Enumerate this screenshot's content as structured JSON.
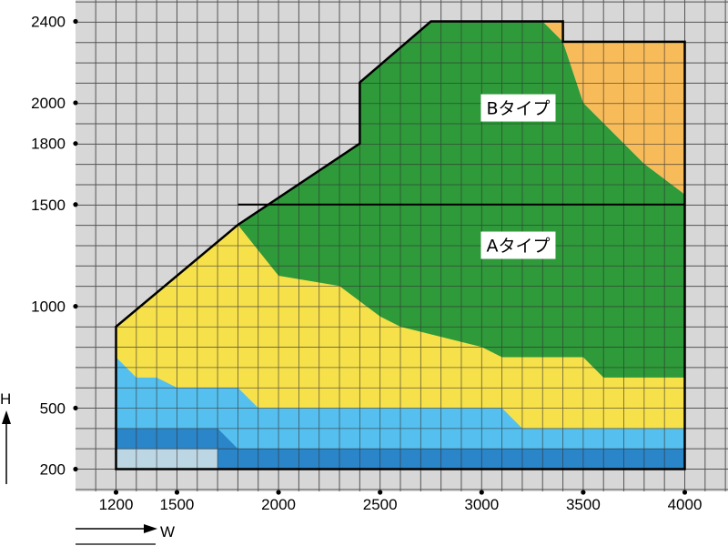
{
  "chart_data": {
    "type": "area",
    "title": "",
    "xlabel": "W",
    "ylabel": "H",
    "xlim": [
      1200,
      4000
    ],
    "ylim": [
      200,
      2400
    ],
    "x_ticks": [
      1200,
      1500,
      2000,
      2500,
      3000,
      3500,
      4000
    ],
    "y_ticks": [
      200,
      500,
      1000,
      1500,
      1800,
      2000,
      2400
    ],
    "grid": true,
    "colors": {
      "background": "#d7d7d7",
      "grid": "#555555",
      "outline": "#000000",
      "green": "#2e9a3a",
      "orange": "#f7bb5a",
      "yellow": "#f7e14a",
      "light_blue": "#55c0ef",
      "mid_blue": "#2b85c9",
      "pale_blue": "#bcd6e3"
    },
    "outline": [
      [
        1200,
        900
      ],
      [
        1800,
        1400
      ],
      [
        2400,
        1800
      ],
      [
        2400,
        2100
      ],
      [
        2750,
        2400
      ],
      [
        3400,
        2400
      ],
      [
        3400,
        2300
      ],
      [
        4000,
        2300
      ],
      [
        4000,
        200
      ],
      [
        1200,
        200
      ]
    ],
    "divider": {
      "y": 1500,
      "x": [
        1800,
        4000
      ]
    },
    "regions": [
      {
        "color": "green",
        "points": [
          [
            1200,
            900
          ],
          [
            1800,
            1400
          ],
          [
            2400,
            1800
          ],
          [
            2400,
            2100
          ],
          [
            2750,
            2400
          ],
          [
            3300,
            2400
          ],
          [
            3400,
            2300
          ],
          [
            3500,
            2000
          ],
          [
            3800,
            1700
          ],
          [
            4000,
            1550
          ],
          [
            4000,
            200
          ],
          [
            1200,
            200
          ]
        ]
      },
      {
        "color": "orange",
        "points": [
          [
            3300,
            2400
          ],
          [
            3400,
            2400
          ],
          [
            3400,
            2300
          ],
          [
            4000,
            2300
          ],
          [
            4000,
            1550
          ],
          [
            3800,
            1700
          ],
          [
            3500,
            2000
          ],
          [
            3400,
            2300
          ]
        ]
      },
      {
        "color": "yellow",
        "points": [
          [
            1200,
            900
          ],
          [
            1800,
            1400
          ],
          [
            2000,
            1150
          ],
          [
            2300,
            1100
          ],
          [
            2500,
            950
          ],
          [
            2600,
            900
          ],
          [
            3000,
            800
          ],
          [
            3100,
            750
          ],
          [
            3500,
            750
          ],
          [
            3600,
            650
          ],
          [
            4000,
            650
          ],
          [
            4000,
            200
          ],
          [
            1200,
            200
          ]
        ]
      },
      {
        "color": "light_blue",
        "points": [
          [
            1200,
            750
          ],
          [
            1300,
            650
          ],
          [
            1400,
            650
          ],
          [
            1500,
            600
          ],
          [
            1800,
            600
          ],
          [
            1900,
            500
          ],
          [
            3100,
            500
          ],
          [
            3200,
            400
          ],
          [
            4000,
            400
          ],
          [
            4000,
            200
          ],
          [
            1200,
            200
          ]
        ]
      },
      {
        "color": "mid_blue",
        "points": [
          [
            1200,
            400
          ],
          [
            1700,
            400
          ],
          [
            1800,
            300
          ],
          [
            4000,
            300
          ],
          [
            4000,
            200
          ],
          [
            1200,
            200
          ]
        ]
      },
      {
        "color": "pale_blue",
        "points": [
          [
            1200,
            300
          ],
          [
            1700,
            300
          ],
          [
            1700,
            200
          ],
          [
            1200,
            200
          ]
        ]
      }
    ],
    "labels": [
      {
        "text": "Bタイプ",
        "x": 3180,
        "y": 1975
      },
      {
        "text": "Aタイプ",
        "x": 3180,
        "y": 1300
      }
    ]
  }
}
